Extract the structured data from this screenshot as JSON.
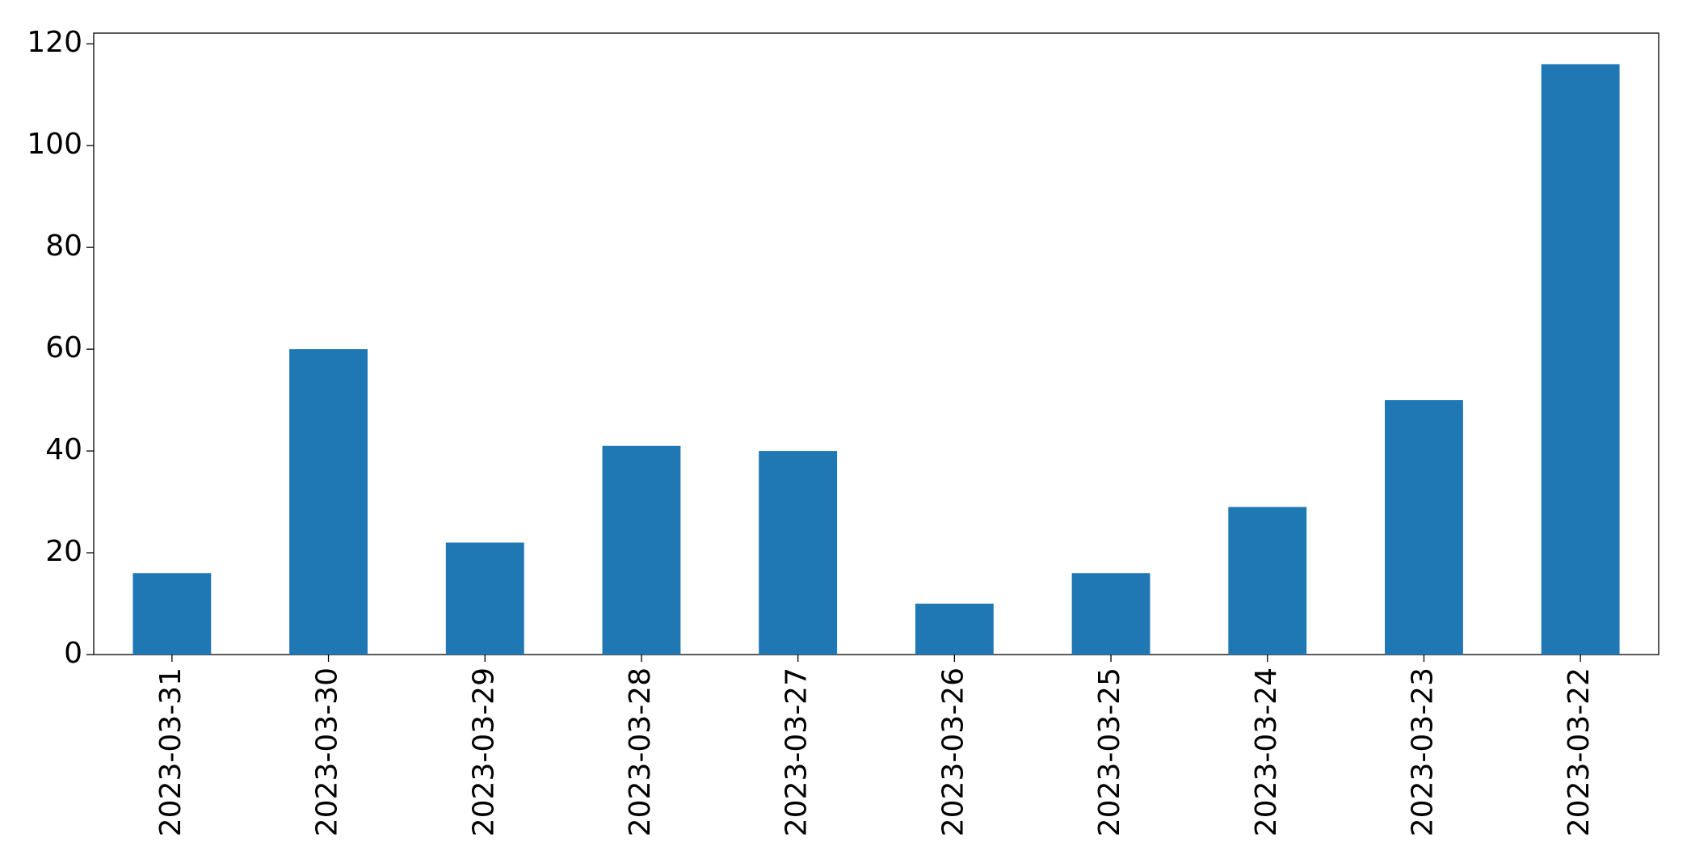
{
  "chart_data": {
    "type": "bar",
    "categories": [
      "2023-03-31",
      "2023-03-30",
      "2023-03-29",
      "2023-03-28",
      "2023-03-27",
      "2023-03-26",
      "2023-03-25",
      "2023-03-24",
      "2023-03-23",
      "2023-03-22"
    ],
    "values": [
      16,
      60,
      22,
      41,
      40,
      10,
      16,
      29,
      50,
      116
    ],
    "color": "#1f77b4",
    "ylim": [
      0,
      122.1
    ],
    "yticks": [
      0,
      20,
      40,
      60,
      80,
      100,
      120
    ],
    "grid": false
  }
}
